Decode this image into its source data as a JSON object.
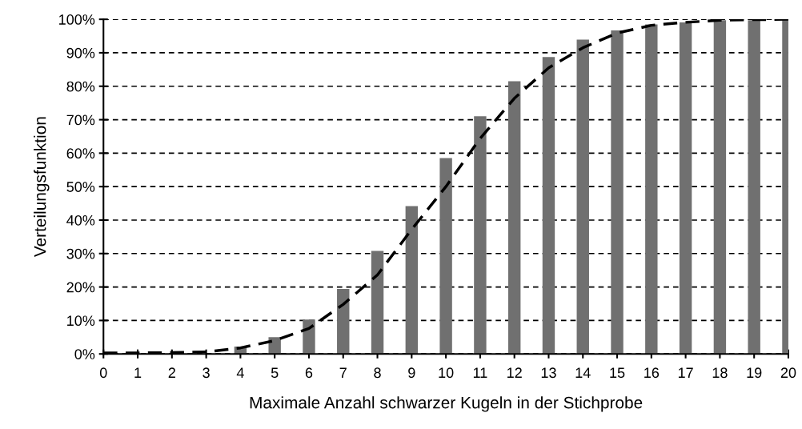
{
  "chart_data": {
    "type": "bar",
    "xlabel": "Maximale Anzahl schwarzer Kugeln in der Stichprobe",
    "ylabel": "Verteilungsfunktion",
    "x": [
      0,
      1,
      2,
      3,
      4,
      5,
      6,
      7,
      8,
      9,
      10,
      11,
      12,
      13,
      14,
      15,
      16,
      17,
      18,
      19,
      20
    ],
    "series": [
      {
        "color": "#707070",
        "values": [
          null,
          null,
          null,
          null,
          2.2,
          5.0,
          10.3,
          19.4,
          30.8,
          44.2,
          58.5,
          71.0,
          81.5,
          88.7,
          93.9,
          96.7,
          98.5,
          99.1,
          99.7,
          99.7,
          100
        ]
      },
      {
        "type": "line",
        "color": "#000000",
        "line_style": "dashed",
        "values": [
          0.3,
          0.3,
          0.4,
          0.6,
          1.8,
          4.0,
          7.6,
          14.8,
          23.6,
          37.2,
          50.0,
          64.4,
          76.4,
          85.5,
          91.5,
          95.9,
          98.2,
          99.1,
          99.7,
          99.9,
          100
        ]
      }
    ],
    "xlim": [
      0,
      20
    ],
    "xticks": [
      0,
      1,
      2,
      3,
      4,
      5,
      6,
      7,
      8,
      9,
      10,
      11,
      12,
      13,
      14,
      15,
      16,
      17,
      18,
      19,
      20
    ],
    "ylim": [
      0,
      100
    ],
    "yticks": [
      {
        "value": 0,
        "label": "0%"
      },
      {
        "value": 10,
        "label": "10%"
      },
      {
        "value": 20,
        "label": "20%"
      },
      {
        "value": 30,
        "label": "30%"
      },
      {
        "value": 40,
        "label": "40%"
      },
      {
        "value": 50,
        "label": "50%"
      },
      {
        "value": 60,
        "label": "60%"
      },
      {
        "value": 70,
        "label": "70%"
      },
      {
        "value": 80,
        "label": "80%"
      },
      {
        "value": 90,
        "label": "90%"
      },
      {
        "value": 100,
        "label": "100%"
      }
    ],
    "grid": "y"
  }
}
